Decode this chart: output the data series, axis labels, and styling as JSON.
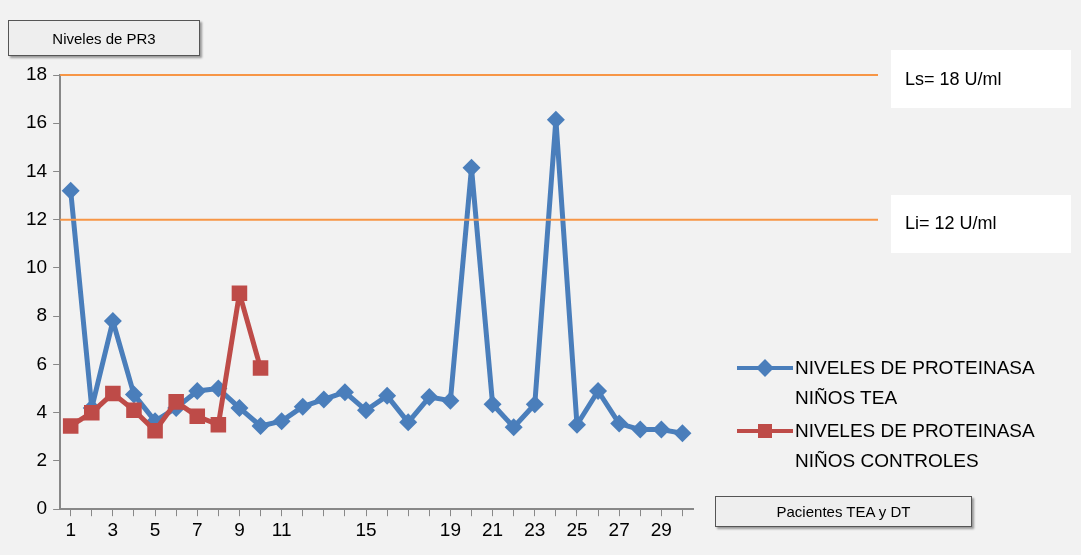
{
  "chart_data": {
    "type": "line",
    "ylabel": "Niveles de PR3",
    "annotations": [
      "Pacientes TEA y  DT"
    ],
    "categories": [
      "1",
      null,
      "3",
      null,
      "5",
      null,
      "7",
      null,
      "9",
      null,
      "11",
      null,
      null,
      null,
      "15",
      null,
      null,
      null,
      "19",
      null,
      "21",
      null,
      "23",
      null,
      "25",
      null,
      "27",
      null,
      "29",
      null
    ],
    "series": [
      {
        "name": "NIVELES DE PROTEINASA NIÑOS TEA",
        "color": "#4a7ebb",
        "marker": "diamond",
        "values": [
          13.2,
          4.2,
          7.8,
          4.75,
          3.65,
          4.2,
          4.9,
          5.0,
          4.2,
          3.45,
          3.65,
          4.25,
          4.55,
          4.85,
          4.1,
          4.7,
          3.6,
          4.65,
          4.5,
          14.15,
          4.35,
          3.4,
          4.35,
          16.15,
          3.5,
          4.9,
          3.55,
          3.3,
          3.3,
          3.15
        ]
      },
      {
        "name": "NIVELES DE PROTEINASA NIÑOS CONTROLES",
        "color": "#be4b48",
        "marker": "square",
        "values": [
          3.45,
          4.0,
          4.8,
          4.1,
          3.25,
          4.45,
          3.85,
          3.5,
          8.95,
          5.85,
          null,
          null,
          null,
          null,
          null,
          null,
          null,
          null,
          null,
          null,
          null,
          null,
          null,
          null,
          null,
          null,
          null,
          null,
          null,
          null
        ]
      }
    ],
    "ylim": [
      0,
      18
    ],
    "yticks": [
      0,
      2,
      4,
      6,
      8,
      10,
      12,
      14,
      16,
      18
    ],
    "grid": false,
    "legend": "right",
    "ref_lines": [
      {
        "axis": "y",
        "value": 18,
        "label": "Ls= 18 U/ml",
        "color": "#f79646"
      },
      {
        "axis": "y",
        "value": 12,
        "label": "Li= 12 U/ml",
        "color": "#f79646"
      }
    ]
  }
}
